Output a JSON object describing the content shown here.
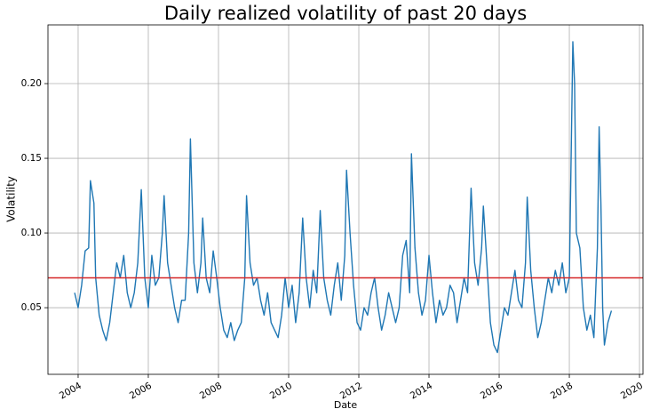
{
  "chart_data": {
    "type": "line",
    "title": "Daily realized volatility of past 20 days",
    "xlabel": "Date",
    "ylabel": "Volatility",
    "x": [
      2003.9,
      2004.0,
      2004.1,
      2004.2,
      2004.3,
      2004.35,
      2004.45,
      2004.5,
      2004.6,
      2004.7,
      2004.8,
      2004.9,
      2005.0,
      2005.1,
      2005.2,
      2005.3,
      2005.4,
      2005.5,
      2005.6,
      2005.7,
      2005.8,
      2005.9,
      2006.0,
      2006.1,
      2006.2,
      2006.3,
      2006.4,
      2006.45,
      2006.55,
      2006.65,
      2006.75,
      2006.85,
      2006.95,
      2007.05,
      2007.15,
      2007.2,
      2007.3,
      2007.4,
      2007.5,
      2007.55,
      2007.65,
      2007.75,
      2007.85,
      2007.95,
      2008.05,
      2008.15,
      2008.25,
      2008.35,
      2008.45,
      2008.55,
      2008.65,
      2008.75,
      2008.8,
      2008.9,
      2009.0,
      2009.1,
      2009.2,
      2009.3,
      2009.4,
      2009.5,
      2009.6,
      2009.7,
      2009.8,
      2009.9,
      2010.0,
      2010.1,
      2010.2,
      2010.3,
      2010.4,
      2010.5,
      2010.6,
      2010.7,
      2010.8,
      2010.9,
      2011.0,
      2011.1,
      2011.2,
      2011.3,
      2011.4,
      2011.5,
      2011.6,
      2011.65,
      2011.75,
      2011.85,
      2011.95,
      2012.05,
      2012.15,
      2012.25,
      2012.35,
      2012.45,
      2012.55,
      2012.65,
      2012.75,
      2012.85,
      2012.95,
      2013.05,
      2013.15,
      2013.25,
      2013.35,
      2013.45,
      2013.5,
      2013.6,
      2013.7,
      2013.8,
      2013.9,
      2014.0,
      2014.1,
      2014.2,
      2014.3,
      2014.4,
      2014.5,
      2014.6,
      2014.7,
      2014.8,
      2014.9,
      2015.0,
      2015.1,
      2015.2,
      2015.3,
      2015.4,
      2015.5,
      2015.55,
      2015.65,
      2015.75,
      2015.85,
      2015.95,
      2016.05,
      2016.15,
      2016.25,
      2016.35,
      2016.45,
      2016.55,
      2016.65,
      2016.75,
      2016.8,
      2016.9,
      2017.0,
      2017.1,
      2017.2,
      2017.3,
      2017.4,
      2017.5,
      2017.6,
      2017.7,
      2017.8,
      2017.9,
      2018.0,
      2018.1,
      2018.15,
      2018.2,
      2018.3,
      2018.4,
      2018.5,
      2018.6,
      2018.7,
      2018.8,
      2018.85,
      2018.9,
      2018.95,
      2019.0,
      2019.1,
      2019.2
    ],
    "values": [
      0.06,
      0.05,
      0.065,
      0.088,
      0.09,
      0.135,
      0.12,
      0.07,
      0.045,
      0.035,
      0.028,
      0.04,
      0.06,
      0.08,
      0.07,
      0.085,
      0.06,
      0.05,
      0.06,
      0.08,
      0.129,
      0.07,
      0.05,
      0.085,
      0.065,
      0.07,
      0.1,
      0.125,
      0.08,
      0.065,
      0.05,
      0.04,
      0.055,
      0.055,
      0.1,
      0.163,
      0.08,
      0.06,
      0.08,
      0.11,
      0.07,
      0.06,
      0.088,
      0.07,
      0.05,
      0.035,
      0.03,
      0.04,
      0.028,
      0.035,
      0.04,
      0.07,
      0.125,
      0.08,
      0.065,
      0.07,
      0.055,
      0.045,
      0.06,
      0.04,
      0.035,
      0.03,
      0.045,
      0.07,
      0.05,
      0.065,
      0.04,
      0.06,
      0.11,
      0.07,
      0.05,
      0.075,
      0.06,
      0.115,
      0.07,
      0.055,
      0.045,
      0.065,
      0.08,
      0.055,
      0.085,
      0.142,
      0.1,
      0.065,
      0.04,
      0.035,
      0.05,
      0.045,
      0.06,
      0.07,
      0.05,
      0.035,
      0.045,
      0.06,
      0.05,
      0.04,
      0.05,
      0.085,
      0.095,
      0.06,
      0.153,
      0.09,
      0.06,
      0.045,
      0.055,
      0.085,
      0.06,
      0.04,
      0.055,
      0.045,
      0.05,
      0.065,
      0.06,
      0.04,
      0.055,
      0.07,
      0.06,
      0.13,
      0.08,
      0.065,
      0.09,
      0.118,
      0.08,
      0.04,
      0.025,
      0.02,
      0.035,
      0.05,
      0.045,
      0.06,
      0.075,
      0.055,
      0.05,
      0.08,
      0.124,
      0.075,
      0.05,
      0.03,
      0.04,
      0.055,
      0.07,
      0.06,
      0.075,
      0.065,
      0.08,
      0.06,
      0.07,
      0.228,
      0.2,
      0.1,
      0.09,
      0.05,
      0.035,
      0.045,
      0.03,
      0.09,
      0.171,
      0.12,
      0.05,
      0.025,
      0.04,
      0.048
    ],
    "color": "#1f77b4",
    "hlines": [
      {
        "value": 0.07,
        "color": "#d62728"
      }
    ],
    "xlim": [
      2003.14,
      2020.1
    ],
    "xticks": [
      2004,
      2006,
      2008,
      2010,
      2012,
      2014,
      2016,
      2018,
      2020
    ],
    "ylim": [
      0.0054,
      0.2393
    ],
    "yticks": [
      0.05,
      {
        "value": 0.1,
        "label": "0.10"
      },
      0.15,
      {
        "value": 0.2,
        "label": "0.20"
      }
    ],
    "grid": true
  }
}
